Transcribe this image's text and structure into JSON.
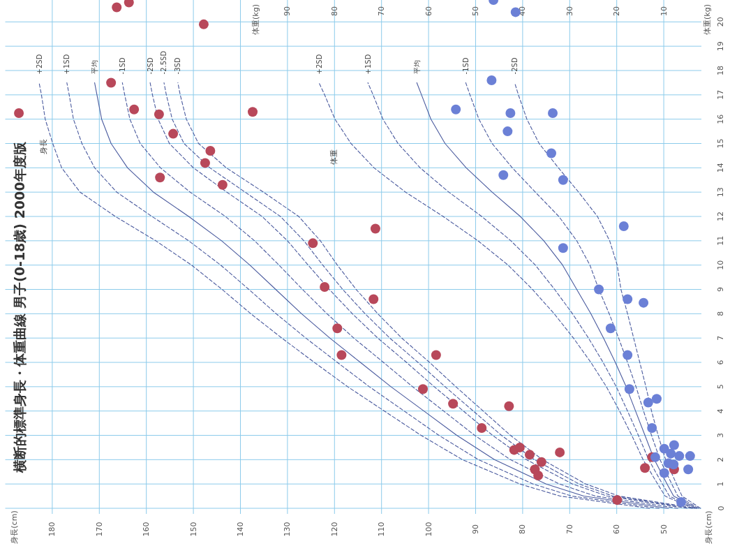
{
  "chart_data": {
    "type": "scatter",
    "title": "横断的標準身長・体重曲線 男子(0-18歳) 2000年度版",
    "x2label": "体重(kg)",
    "annotations": [
      "身長",
      "体重",
      "身長(cm)",
      "身長(cm)"
    ],
    "xlim": [
      190,
      42
    ],
    "xticks": [
      50,
      60,
      70,
      80,
      90,
      100,
      110,
      120,
      130,
      140,
      150,
      160,
      170,
      180
    ],
    "x2lim": [
      150,
      2
    ],
    "x2ticks": [
      10,
      20,
      30,
      40,
      50,
      60,
      70,
      80,
      90
    ],
    "ylim": [
      0,
      20.9
    ],
    "yticks": [
      0,
      1,
      2,
      3,
      4,
      5,
      6,
      7,
      8,
      9,
      10,
      11,
      12,
      13,
      14,
      15,
      16,
      17,
      18,
      19,
      20
    ],
    "grid": true,
    "series": [
      {
        "type": "line",
        "name": "+2SD",
        "color": "#4a5a9e",
        "line_style": "dashed",
        "x": [
          53,
          72,
          80.6,
          92.8,
          101.6,
          109.4,
          117.2,
          124.3,
          131.2,
          137.8,
          143.9,
          150.4,
          158,
          166.6,
          174.1,
          178,
          179.9,
          181.5,
          182.3,
          182.8
        ],
        "values": [
          0,
          0.5,
          1,
          2,
          3,
          4,
          5,
          6,
          7,
          8,
          9,
          10,
          11,
          12,
          13,
          14,
          15,
          16,
          17,
          17.5
        ]
      },
      {
        "type": "line",
        "name": "+1SD",
        "color": "#4a5a9e",
        "line_style": "dashed",
        "x": [
          51,
          69.5,
          77.8,
          89.4,
          97.8,
          105.2,
          112.6,
          119.4,
          126.1,
          132.4,
          138.2,
          144.2,
          151,
          158.8,
          166.3,
          171,
          173.7,
          175.5,
          176.4,
          176.9
        ],
        "values": [
          0,
          0.5,
          1,
          2,
          3,
          4,
          5,
          6,
          7,
          8,
          9,
          10,
          11,
          12,
          13,
          14,
          15,
          16,
          17,
          17.5
        ]
      },
      {
        "type": "line",
        "name": "平均",
        "color": "#4a5a9e",
        "line_style": "solid",
        "x": [
          49,
          67,
          75,
          86,
          94,
          101,
          108,
          114.5,
          121,
          127,
          132.5,
          138,
          144,
          151,
          158.5,
          164,
          167.5,
          169.5,
          170.5,
          171
        ],
        "values": [
          0,
          0.5,
          1,
          2,
          3,
          4,
          5,
          6,
          7,
          8,
          9,
          10,
          11,
          12,
          13,
          14,
          15,
          16,
          17,
          17.5
        ]
      },
      {
        "type": "line",
        "name": "-1SD",
        "color": "#4a5a9e",
        "line_style": "dashed",
        "x": [
          47,
          64.5,
          72.2,
          82.6,
          90.2,
          96.8,
          103.4,
          109.6,
          115.9,
          121.6,
          126.8,
          131.8,
          137,
          143.2,
          150.7,
          157,
          161.3,
          163.5,
          164.6,
          165.1
        ],
        "values": [
          0,
          0.5,
          1,
          2,
          3,
          4,
          5,
          6,
          7,
          8,
          9,
          10,
          11,
          12,
          13,
          14,
          15,
          16,
          17,
          17.5
        ]
      },
      {
        "type": "line",
        "name": "-2SD",
        "color": "#4a5a9e",
        "line_style": "dashed",
        "x": [
          45,
          62,
          69.4,
          79.2,
          86.4,
          92.6,
          98.8,
          104.7,
          110.8,
          116.2,
          121.1,
          125.6,
          130,
          135.4,
          142.9,
          150,
          155.1,
          157.5,
          158.7,
          159.2
        ],
        "values": [
          0,
          0.5,
          1,
          2,
          3,
          4,
          5,
          6,
          7,
          8,
          9,
          10,
          11,
          12,
          13,
          14,
          15,
          16,
          17,
          17.5
        ]
      },
      {
        "type": "line",
        "name": "-2.5SD",
        "color": "#4a5a9e",
        "line_style": "dashed",
        "x": [
          44,
          60.75,
          68,
          77.5,
          84.5,
          90.5,
          96.5,
          102.25,
          108.25,
          113.5,
          118.25,
          122.5,
          126.5,
          131.5,
          139,
          146.5,
          152,
          154.5,
          155.75,
          156.25
        ],
        "values": [
          0,
          0.5,
          1,
          2,
          3,
          4,
          5,
          6,
          7,
          8,
          9,
          10,
          11,
          12,
          13,
          14,
          15,
          16,
          17,
          17.5
        ]
      },
      {
        "type": "line",
        "name": "-3SD",
        "color": "#4a5a9e",
        "line_style": "dashed",
        "x": [
          43,
          59.5,
          66.6,
          75.8,
          82.6,
          88.4,
          94.2,
          99.8,
          105.7,
          110.8,
          115.4,
          119.4,
          123,
          127.6,
          135.1,
          143,
          148.9,
          151.5,
          152.8,
          153.3
        ],
        "values": [
          0,
          0.5,
          1,
          2,
          3,
          4,
          5,
          6,
          7,
          8,
          9,
          10,
          11,
          12,
          13,
          14,
          15,
          16,
          17,
          17.5
        ]
      },
      {
        "type": "line",
        "axis": "x2",
        "name": "+2SD",
        "color": "#4a5a9e",
        "line_style": "dashed",
        "x": [
          3.8,
          9.7,
          11.3,
          14.4,
          16.8,
          19.4,
          22.2,
          25.5,
          29.2,
          33.3,
          37.9,
          43.1,
          49.5,
          56.9,
          64.9,
          71.6,
          76.5,
          79.9,
          82.1,
          83.3
        ],
        "values": [
          0,
          0.5,
          1,
          2,
          3,
          4,
          5,
          6,
          7,
          8,
          9,
          10,
          11,
          12,
          13,
          14,
          15,
          16,
          17,
          17.5
        ]
      },
      {
        "type": "line",
        "axis": "x2",
        "name": "+1SD",
        "color": "#4a5a9e",
        "line_style": "dashed",
        "x": [
          3.4,
          8.8,
          10.3,
          13.2,
          15.4,
          17.7,
          20.1,
          22.9,
          26,
          29.4,
          33.2,
          37.3,
          42.5,
          48.7,
          55.7,
          61.8,
          66.5,
          69.7,
          71.8,
          72.9
        ],
        "values": [
          0,
          0.5,
          1,
          2,
          3,
          4,
          5,
          6,
          7,
          8,
          9,
          10,
          11,
          12,
          13,
          14,
          15,
          16,
          17,
          17.5
        ]
      },
      {
        "type": "line",
        "axis": "x2",
        "name": "平均",
        "color": "#4a5a9e",
        "line_style": "solid",
        "x": [
          3.0,
          7.9,
          9.3,
          12,
          14,
          16,
          18,
          20.3,
          22.8,
          25.5,
          28.5,
          31.5,
          35.5,
          40.5,
          46.5,
          52,
          56.5,
          59.5,
          61.5,
          62.5
        ],
        "values": [
          0,
          0.5,
          1,
          2,
          3,
          4,
          5,
          6,
          7,
          8,
          9,
          10,
          11,
          12,
          13,
          14,
          15,
          16,
          17,
          17.5
        ]
      },
      {
        "type": "line",
        "axis": "x2",
        "name": "-1SD",
        "color": "#4a5a9e",
        "line_style": "dashed",
        "x": [
          2.6,
          7,
          8.3,
          10.8,
          12.6,
          14.3,
          15.9,
          17.7,
          19.6,
          21.6,
          23.8,
          25.7,
          28.5,
          32.3,
          37.3,
          42.2,
          46.5,
          49.3,
          51.2,
          52.1
        ],
        "values": [
          0,
          0.5,
          1,
          2,
          3,
          4,
          5,
          6,
          7,
          8,
          9,
          10,
          11,
          12,
          13,
          14,
          15,
          16,
          17,
          17.5
        ]
      },
      {
        "type": "line",
        "axis": "x2",
        "name": "-2SD",
        "color": "#4a5a9e",
        "line_style": "dashed",
        "x": [
          2.2,
          6.1,
          7.3,
          9.6,
          11.2,
          12.6,
          13.8,
          15.1,
          16.4,
          17.7,
          19.1,
          19.9,
          21.5,
          24.1,
          28.1,
          32.4,
          36.5,
          39.1,
          40.9,
          41.7
        ],
        "values": [
          0,
          0.5,
          1,
          2,
          3,
          4,
          5,
          6,
          7,
          8,
          9,
          10,
          11,
          12,
          13,
          14,
          15,
          16,
          17,
          17.5
        ]
      },
      {
        "marker": "circle",
        "color": "#b8485a",
        "x": [
          166.3,
          163.7,
          147.8,
          167.5,
          162.6,
          157.3,
          154.3,
          146.4,
          147.5,
          143.8,
          157.1,
          137.4,
          124.6,
          111.3,
          122.1,
          111.7,
          119.4,
          118.5,
          98.4,
          101.2,
          94.8,
          88.7,
          82.9,
          81.8,
          80.6,
          78.5,
          76.0,
          77.4,
          76.7,
          72.1,
          59.9,
          54.0,
          52.5,
          47.8,
          187.1
        ],
        "values": [
          20.6,
          20.8,
          19.9,
          17.5,
          16.4,
          16.2,
          15.4,
          14.7,
          14.2,
          13.3,
          13.6,
          16.3,
          10.9,
          11.5,
          9.1,
          8.6,
          7.4,
          6.3,
          6.3,
          4.9,
          4.3,
          3.3,
          4.2,
          2.4,
          2.5,
          2.2,
          1.9,
          1.6,
          1.35,
          2.3,
          0.34,
          1.66,
          2.1,
          1.6,
          16.25
        ]
      },
      {
        "axis": "x2",
        "marker": "circle",
        "color": "#6b80d6",
        "x": [
          46.2,
          41.5,
          46.6,
          54.2,
          42.6,
          33.6,
          43.2,
          33.9,
          44.1,
          31.4,
          31.4,
          18.5,
          23.8,
          17.7,
          14.3,
          21.3,
          17.7,
          17.3,
          13.3,
          11.5,
          12.5,
          9.9,
          7.8,
          8.5,
          6.7,
          11.8,
          9.0,
          7.9,
          9.9,
          4.4,
          4.8,
          6.3
        ],
        "values": [
          20.9,
          20.4,
          17.6,
          16.4,
          16.25,
          16.25,
          15.5,
          14.6,
          13.7,
          13.5,
          10.7,
          11.6,
          9.0,
          8.6,
          8.45,
          7.4,
          6.3,
          4.9,
          4.35,
          4.5,
          3.3,
          2.45,
          2.6,
          2.25,
          2.15,
          2.1,
          1.85,
          1.8,
          1.45,
          2.15,
          1.6,
          0.26
        ]
      }
    ]
  }
}
